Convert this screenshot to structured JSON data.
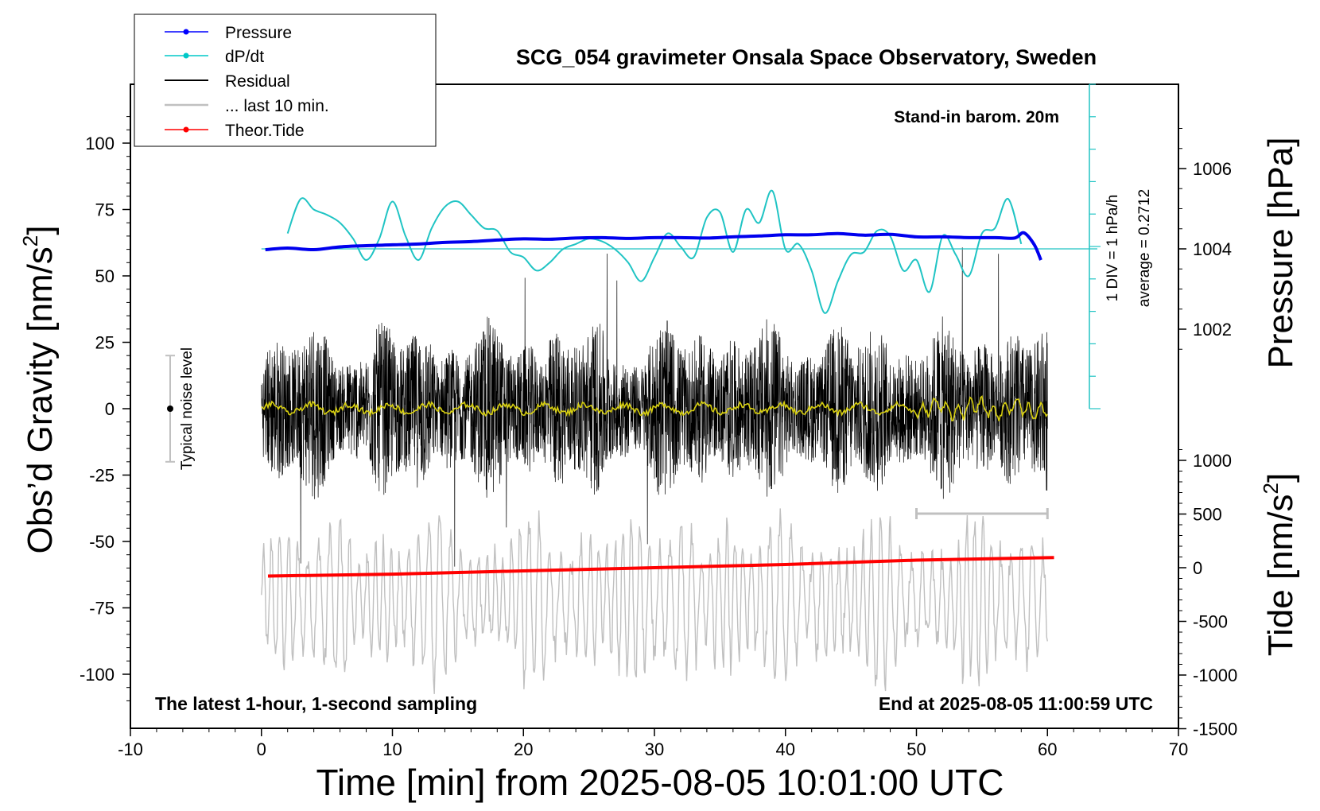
{
  "chart_data": {
    "type": "line",
    "title": "SCG_054 gravimeter Onsala Space Observatory, Sweden",
    "subtitle": "Stand-in barom. 20m",
    "bottom_left_note": "The latest 1-hour, 1-second sampling",
    "bottom_right_note": "End at 2025-08-05 11:00:59 UTC",
    "xlabel": "Time [min] from 2025-08-05 10:01:00 UTC",
    "ylabel_left_main": "Obs’d Gravity [nm/s",
    "ylabel_left_sup": "2",
    "ylabel_left_close": "]",
    "ylabel_right_pressure": "Pressure [hPa]",
    "ylabel_right_tide_main": "Tide [nm/s",
    "ylabel_right_tide_sup": "2",
    "ylabel_right_tide_close": "]",
    "xlim": [
      -10,
      70
    ],
    "xticks": [
      "-10",
      "0",
      "10",
      "20",
      "30",
      "40",
      "50",
      "60",
      "70"
    ],
    "ylim_gravity": [
      -120,
      120
    ],
    "yticks_gravity": [
      "100",
      "75",
      "50",
      "25",
      "0",
      "-25",
      "-50",
      "-75",
      "-100"
    ],
    "yticks_pressure": [
      "1006",
      "1004",
      "1002"
    ],
    "yticks_tide": [
      "1000",
      "500",
      "0",
      "-500",
      "-1000",
      "-1500"
    ],
    "noise_label": "Typical noise level",
    "noise_range": [
      -20,
      20
    ],
    "dpdt_scale_label": "1 DIV = 1 hPa/h",
    "dpdt_average_label": "average = 0.2712",
    "last10_bracket": [
      50,
      60
    ],
    "legend": {
      "position": "top-left",
      "items": [
        {
          "label": "Pressure",
          "color": "#0000ff",
          "marker": true
        },
        {
          "label": "dP/dt",
          "color": "#00c8c8",
          "marker": true
        },
        {
          "label": "Residual",
          "color": "#000000",
          "marker": false
        },
        {
          "label": "... last 10 min.",
          "color": "#c0c0c0",
          "marker": false
        },
        {
          "label": "Theor.Tide",
          "color": "#ff0000",
          "marker": true
        }
      ]
    },
    "series": [
      {
        "name": "Pressure",
        "axis": "pressure",
        "unit": "hPa",
        "x": [
          0.3,
          2,
          4,
          6,
          8,
          10,
          12,
          14,
          16,
          18,
          20,
          22,
          24,
          26,
          28,
          30,
          32,
          34,
          36,
          38,
          40,
          42,
          44,
          46,
          48,
          50,
          52,
          54,
          56,
          57.5,
          58.2,
          59,
          59.5
        ],
        "y": [
          1003.98,
          1004.02,
          1003.98,
          1004.05,
          1004.08,
          1004.1,
          1004.12,
          1004.16,
          1004.18,
          1004.22,
          1004.25,
          1004.24,
          1004.27,
          1004.28,
          1004.26,
          1004.28,
          1004.28,
          1004.27,
          1004.3,
          1004.32,
          1004.35,
          1004.35,
          1004.38,
          1004.34,
          1004.36,
          1004.3,
          1004.3,
          1004.28,
          1004.28,
          1004.27,
          1004.4,
          1004.1,
          1003.72
        ]
      },
      {
        "name": "dP/dt",
        "axis": "gravity",
        "unit": "nm/s2 plot units",
        "x": [
          2,
          3,
          4,
          5,
          6,
          7,
          8,
          9,
          10,
          11,
          12,
          13,
          14,
          15,
          16,
          17,
          18,
          19,
          20,
          21,
          22,
          23,
          24,
          25,
          26,
          27,
          28,
          29,
          30,
          31,
          32,
          33,
          34,
          35,
          36,
          37,
          38,
          39,
          40,
          41,
          42,
          43,
          44,
          45,
          46,
          47,
          48,
          49,
          50,
          51,
          52,
          53,
          54,
          55,
          56,
          57,
          58
        ],
        "y": [
          66,
          79,
          75,
          73,
          70,
          64,
          56,
          64,
          78,
          65,
          56,
          68,
          76,
          78,
          73,
          68,
          67,
          59,
          57,
          52,
          55,
          60,
          62,
          64,
          63,
          60,
          55,
          48,
          57,
          66,
          61,
          57,
          72,
          74,
          59,
          75,
          70,
          82,
          60,
          62,
          52,
          36,
          48,
          58,
          59,
          67,
          65,
          52,
          56,
          44,
          65,
          58,
          50,
          66,
          68,
          79,
          62
        ]
      },
      {
        "name": "Residual",
        "axis": "gravity",
        "unit": "nm/s2",
        "x_range": [
          0,
          60
        ],
        "envelope": 35,
        "peak": 62
      },
      {
        "name": "... last 10 min.",
        "axis": "gravity",
        "unit": "nm/s2",
        "x_range": [
          0,
          60
        ],
        "center": -72,
        "amplitude": 25
      },
      {
        "name": "Theor.Tide",
        "axis": "tide",
        "unit": "nm/s2",
        "x": [
          0.5,
          10,
          20,
          30,
          40,
          50,
          60.5
        ],
        "y": [
          -78,
          -60,
          -30,
          0,
          30,
          70,
          95
        ]
      }
    ],
    "grid": false
  }
}
